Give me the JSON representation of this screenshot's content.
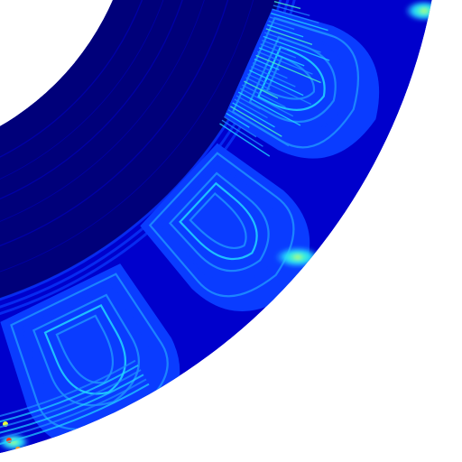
{
  "image": {
    "kind": "annular-colormap-field",
    "palette": {
      "background": "#ffffff",
      "deep": "#00007a",
      "base": "#0000cc",
      "mid": "#0a3cff",
      "light": "#1e90ff",
      "cyan": "#22d7ff",
      "teal": "#46f5c8",
      "yellow": "#e8ff3c",
      "orange": "#ff9a1a",
      "red": "#ff3a1a"
    }
  }
}
